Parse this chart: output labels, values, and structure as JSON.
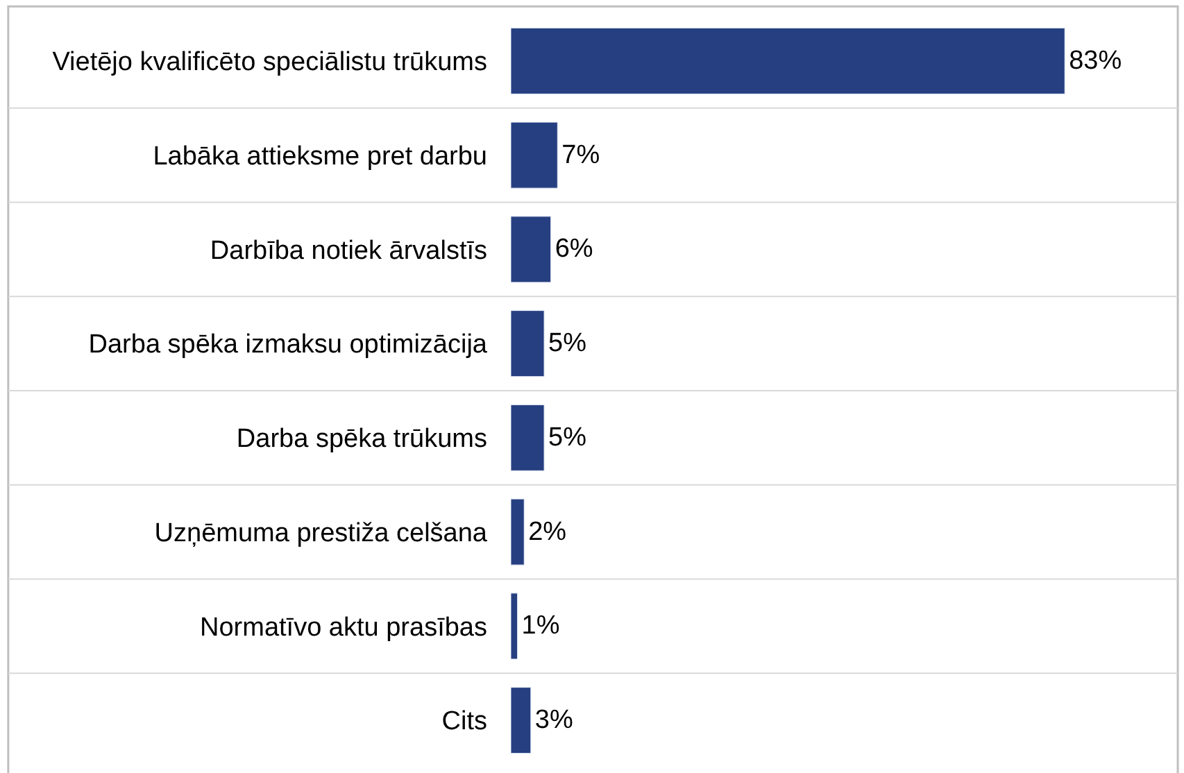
{
  "chart_data": {
    "type": "bar",
    "orientation": "horizontal",
    "categories": [
      "Vietējo kvalificēto speciālistu trūkums",
      "Labāka attieksme pret darbu",
      "Darbība notiek ārvalstīs",
      "Darba spēka izmaksu optimizācija",
      "Darba spēka trūkums",
      "Uzņēmuma prestiža celšana",
      "Normatīvo aktu prasības",
      "Cits"
    ],
    "values": [
      83,
      7,
      6,
      5,
      5,
      2,
      1,
      3
    ],
    "value_labels": [
      "83%",
      "7%",
      "6%",
      "5%",
      "5%",
      "2%",
      "1%",
      "3%"
    ],
    "color": "#263f80",
    "grid": true,
    "tick_labels": "y"
  }
}
